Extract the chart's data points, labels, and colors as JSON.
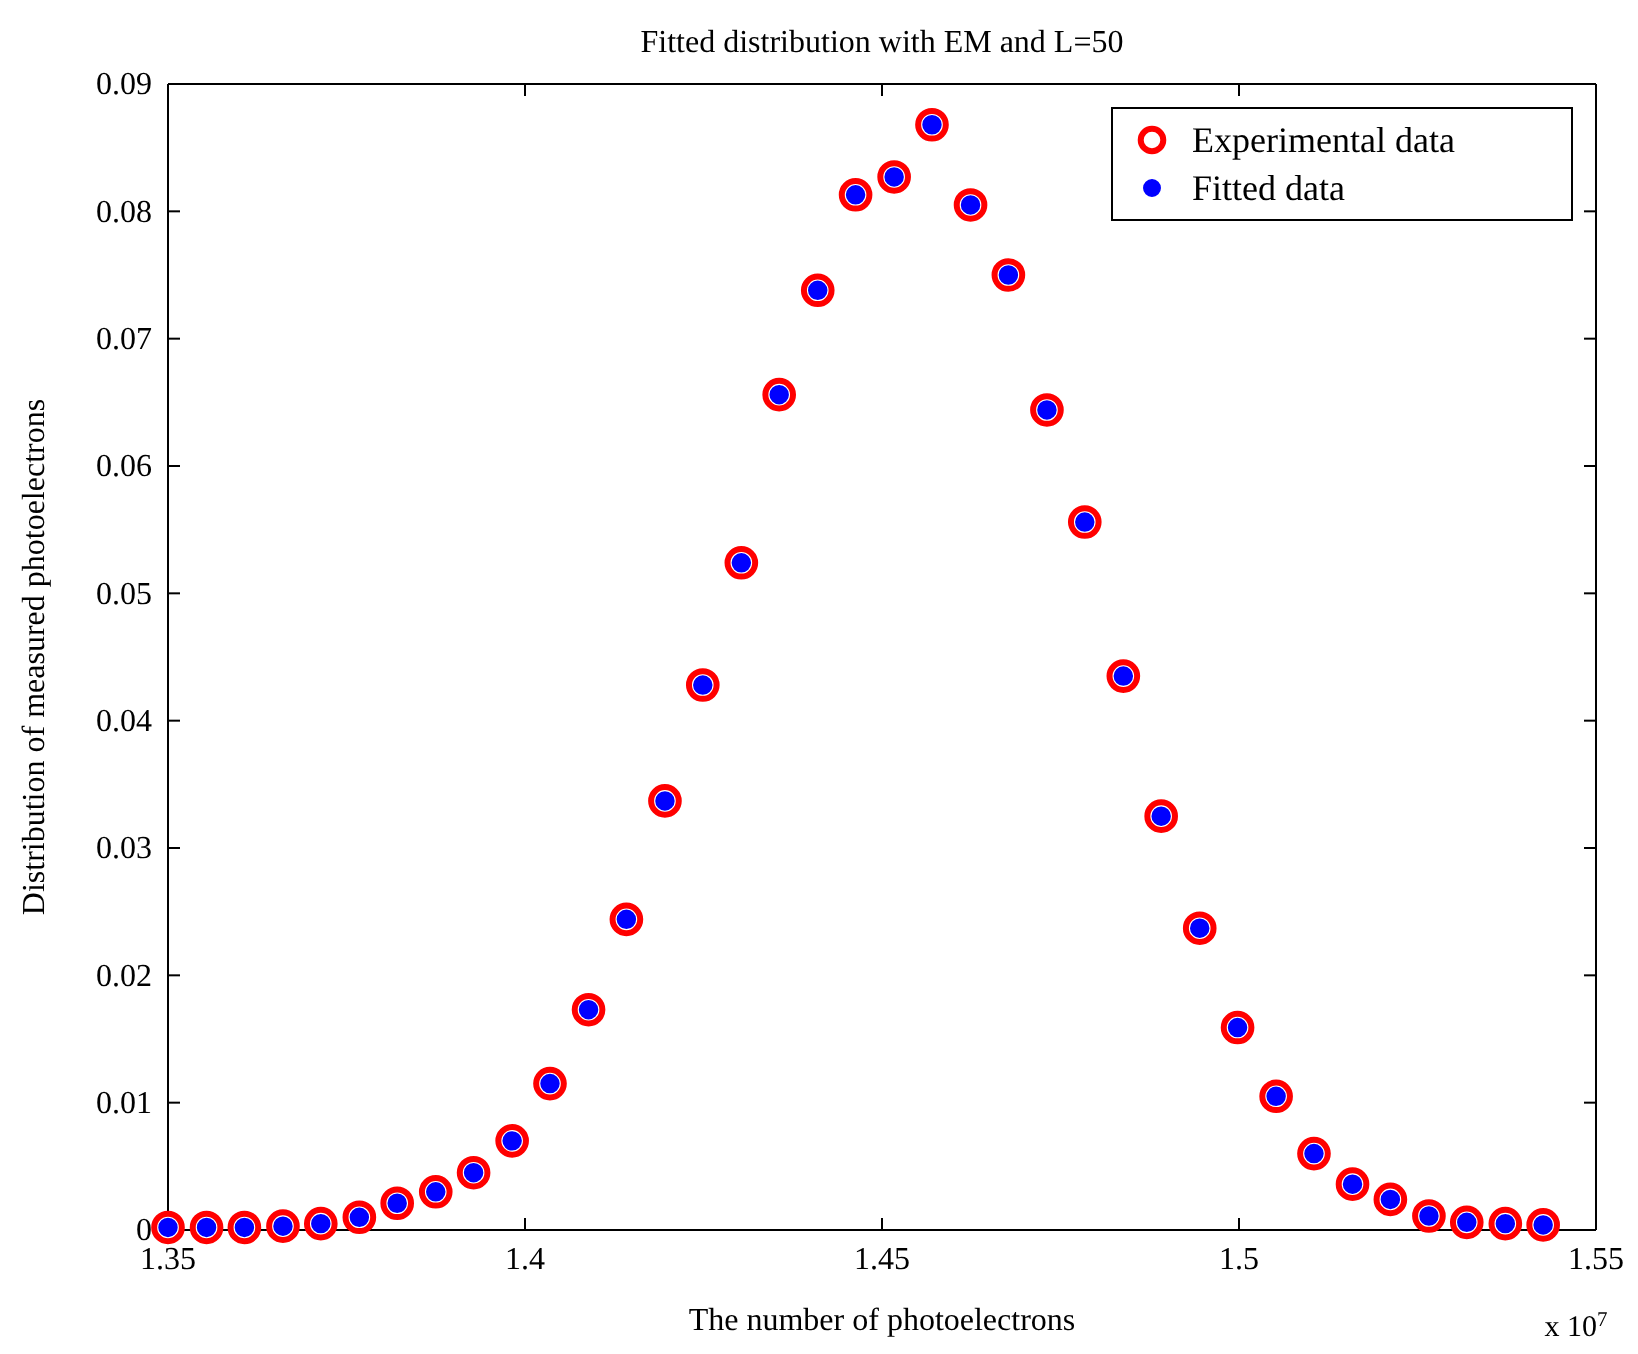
{
  "chart_data": {
    "type": "scatter",
    "title": "Fitted distribution with EM and L=50",
    "xlabel": "The number of photoelectrons",
    "ylabel": "Distribution of measured photoelectrons",
    "annotations": [
      "x 10$^{7}$"
    ],
    "x": [
      1.35,
      1.3554,
      1.3607,
      1.3661,
      1.3714,
      1.3768,
      1.3821,
      1.3875,
      1.3928,
      1.3982,
      1.4035,
      1.4089,
      1.4142,
      1.4196,
      1.4249,
      1.4303,
      1.4356,
      1.441,
      1.4463,
      1.4517,
      1.457,
      1.4624,
      1.4677,
      1.4731,
      1.4784,
      1.4838,
      1.4891,
      1.4945,
      1.4998,
      1.5052,
      1.5105,
      1.5159,
      1.5212,
      1.5266,
      1.5319,
      1.5373,
      1.5426
    ],
    "series": [
      {
        "name": "Experimental data",
        "color": "#ff0000",
        "values": [
          0.0002,
          0.0002,
          0.0002,
          0.0003,
          0.0005,
          0.001,
          0.0021,
          0.003,
          0.0045,
          0.007,
          0.0115,
          0.0173,
          0.0244,
          0.0337,
          0.0428,
          0.0524,
          0.0656,
          0.0738,
          0.0813,
          0.0827,
          0.0868,
          0.0805,
          0.075,
          0.0644,
          0.0556,
          0.0435,
          0.0325,
          0.0237,
          0.0159,
          0.0105,
          0.006,
          0.0036,
          0.0024,
          0.0011,
          0.0006,
          0.0005,
          0.0004
        ]
      },
      {
        "name": "Fitted data",
        "color": "#0000ff",
        "values": [
          0.0002,
          0.0002,
          0.0002,
          0.0003,
          0.0005,
          0.001,
          0.0021,
          0.003,
          0.0045,
          0.007,
          0.0115,
          0.0173,
          0.0244,
          0.0337,
          0.0428,
          0.0524,
          0.0656,
          0.0738,
          0.0813,
          0.0827,
          0.0868,
          0.0805,
          0.075,
          0.0644,
          0.0556,
          0.0435,
          0.0325,
          0.0237,
          0.0159,
          0.0105,
          0.006,
          0.0036,
          0.0024,
          0.0011,
          0.0006,
          0.0005,
          0.0004
        ]
      }
    ],
    "xlim": [
      1.35,
      1.55
    ],
    "xticks": [
      1.35,
      1.4,
      1.45,
      1.5,
      1.55
    ],
    "ylim": [
      0,
      0.09
    ],
    "yticks": [
      0,
      0.01,
      0.02,
      0.03,
      0.04,
      0.05,
      0.06,
      0.07,
      0.08,
      0.09
    ],
    "marker": "circle",
    "legend": "top right"
  }
}
